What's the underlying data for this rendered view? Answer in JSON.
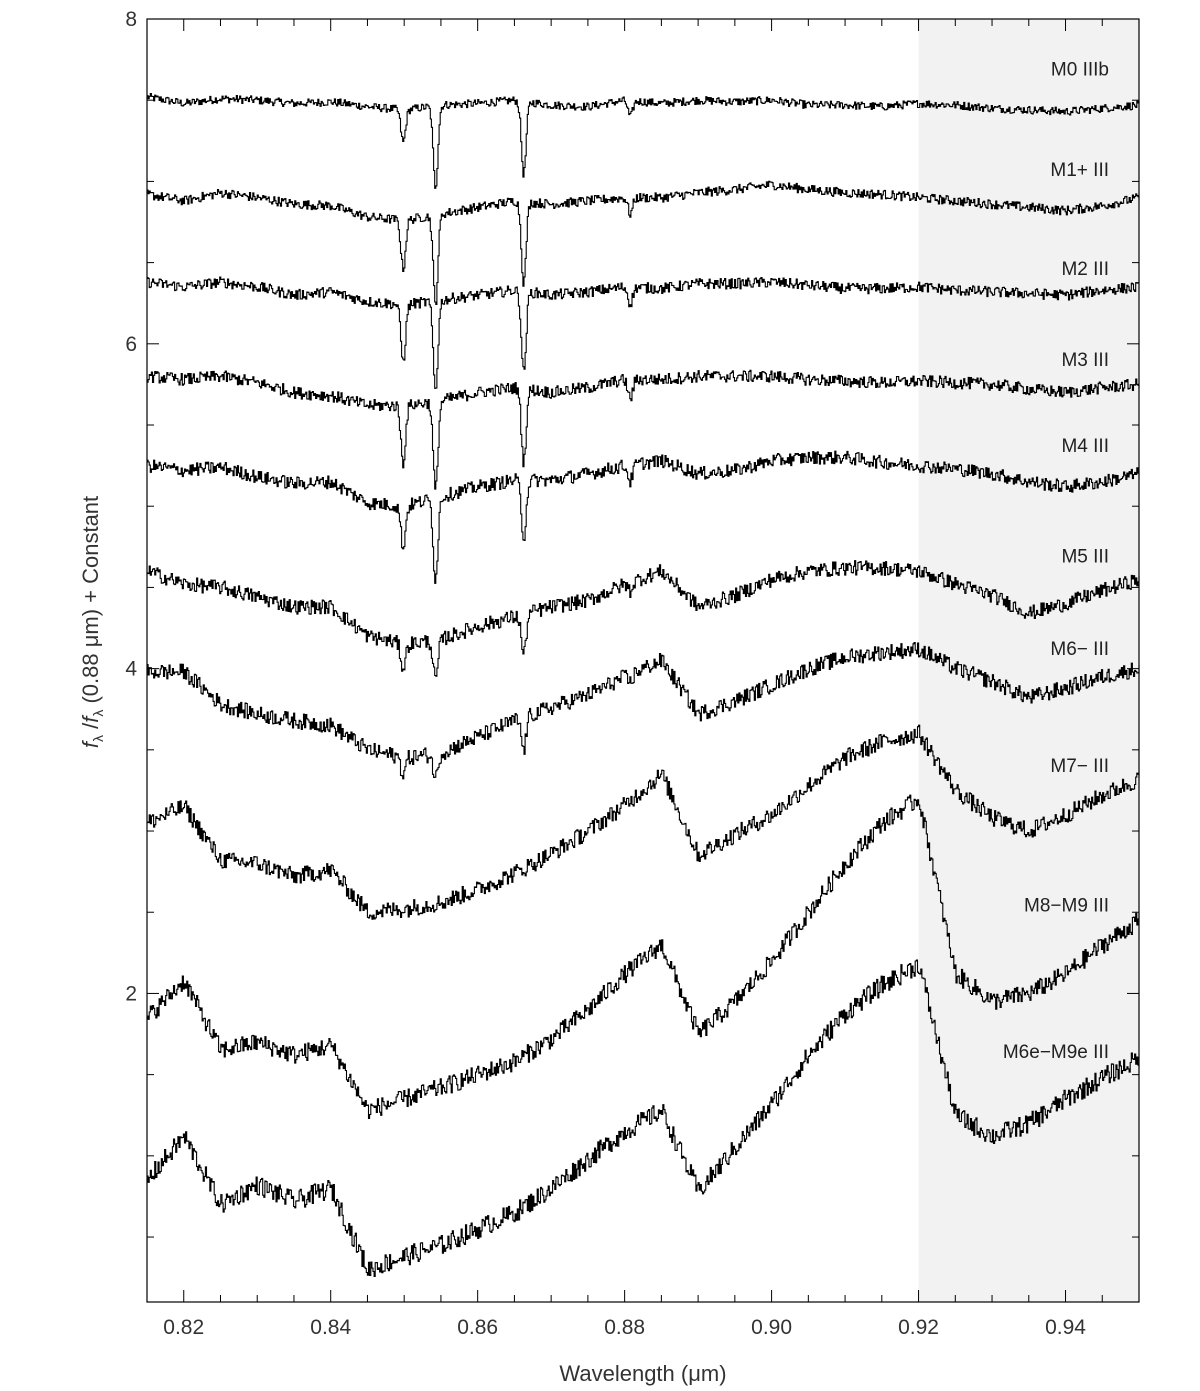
{
  "chart_data": {
    "type": "line",
    "title": "",
    "xlabel": "Wavelength (μm)",
    "ylabel": "fλ/fλ (0.88 μm) + Constant",
    "xlim": [
      0.815,
      0.95
    ],
    "ylim": [
      0.1,
      8.0
    ],
    "x_ticks": [
      "0.82",
      "0.84",
      "0.86",
      "0.88",
      "0.90",
      "0.92",
      "0.94"
    ],
    "y_ticks": [
      "2",
      "4",
      "6",
      "8"
    ],
    "shaded_region": [
      0.92,
      0.95
    ],
    "grid": false,
    "x": [
      0.815,
      0.82,
      0.825,
      0.83,
      0.835,
      0.84,
      0.845,
      0.85,
      0.855,
      0.86,
      0.865,
      0.87,
      0.875,
      0.88,
      0.885,
      0.89,
      0.895,
      0.9,
      0.905,
      0.91,
      0.915,
      0.92,
      0.925,
      0.93,
      0.935,
      0.94,
      0.945,
      0.95
    ],
    "absorption_lines": [
      0.8498,
      0.8542,
      0.8662,
      0.8807
    ],
    "series": [
      {
        "name": "M0 IIIb",
        "values": [
          7.52,
          7.48,
          7.51,
          7.5,
          7.48,
          7.49,
          7.46,
          7.44,
          7.47,
          7.48,
          7.5,
          7.47,
          7.46,
          7.5,
          7.48,
          7.5,
          7.49,
          7.5,
          7.47,
          7.47,
          7.46,
          7.48,
          7.47,
          7.45,
          7.44,
          7.43,
          7.45,
          7.47
        ],
        "line_depth": [
          0.2,
          0.5,
          0.45,
          0.1
        ]
      },
      {
        "name": "M1+ III",
        "values": [
          6.92,
          6.88,
          6.93,
          6.9,
          6.86,
          6.85,
          6.78,
          6.76,
          6.8,
          6.84,
          6.88,
          6.86,
          6.88,
          6.9,
          6.9,
          6.93,
          6.95,
          6.98,
          6.95,
          6.93,
          6.92,
          6.9,
          6.88,
          6.86,
          6.84,
          6.82,
          6.85,
          6.9
        ],
        "line_depth": [
          0.3,
          0.55,
          0.5,
          0.1
        ]
      },
      {
        "name": "M2 III",
        "values": [
          6.38,
          6.35,
          6.38,
          6.35,
          6.3,
          6.32,
          6.26,
          6.24,
          6.27,
          6.3,
          6.33,
          6.3,
          6.32,
          6.35,
          6.34,
          6.37,
          6.37,
          6.38,
          6.36,
          6.34,
          6.34,
          6.35,
          6.33,
          6.32,
          6.31,
          6.3,
          6.33,
          6.35
        ],
        "line_depth": [
          0.35,
          0.55,
          0.5,
          0.1
        ]
      },
      {
        "name": "M3 III",
        "values": [
          5.8,
          5.78,
          5.8,
          5.76,
          5.7,
          5.68,
          5.62,
          5.62,
          5.65,
          5.7,
          5.73,
          5.7,
          5.73,
          5.78,
          5.78,
          5.8,
          5.8,
          5.8,
          5.78,
          5.77,
          5.76,
          5.77,
          5.76,
          5.75,
          5.72,
          5.7,
          5.73,
          5.75
        ],
        "line_depth": [
          0.35,
          0.55,
          0.45,
          0.12
        ]
      },
      {
        "name": "M4 III",
        "values": [
          5.25,
          5.22,
          5.24,
          5.18,
          5.14,
          5.15,
          5.02,
          5.0,
          5.06,
          5.12,
          5.16,
          5.16,
          5.2,
          5.25,
          5.28,
          5.2,
          5.22,
          5.28,
          5.3,
          5.3,
          5.27,
          5.25,
          5.23,
          5.2,
          5.15,
          5.12,
          5.15,
          5.2
        ],
        "line_depth": [
          0.25,
          0.5,
          0.35,
          0.1
        ]
      },
      {
        "name": "M5 III",
        "values": [
          4.6,
          4.52,
          4.5,
          4.44,
          4.38,
          4.38,
          4.2,
          4.15,
          4.18,
          4.26,
          4.32,
          4.38,
          4.42,
          4.52,
          4.6,
          4.38,
          4.45,
          4.55,
          4.6,
          4.62,
          4.62,
          4.6,
          4.52,
          4.45,
          4.34,
          4.4,
          4.48,
          4.55
        ],
        "line_depth": [
          0.15,
          0.25,
          0.25,
          0.05
        ]
      },
      {
        "name": "M6− III",
        "values": [
          3.98,
          3.98,
          3.78,
          3.72,
          3.68,
          3.65,
          3.5,
          3.45,
          3.48,
          3.58,
          3.68,
          3.76,
          3.84,
          3.95,
          4.05,
          3.72,
          3.8,
          3.9,
          4.0,
          4.07,
          4.1,
          4.12,
          4.0,
          3.92,
          3.82,
          3.88,
          3.95,
          4.0
        ],
        "line_depth": [
          0.1,
          0.15,
          0.2,
          0.05
        ]
      },
      {
        "name": "M7− III",
        "values": [
          3.05,
          3.15,
          2.82,
          2.8,
          2.72,
          2.76,
          2.5,
          2.52,
          2.56,
          2.64,
          2.74,
          2.86,
          3.0,
          3.16,
          3.35,
          2.85,
          2.98,
          3.1,
          3.28,
          3.45,
          3.55,
          3.6,
          3.25,
          3.08,
          3.0,
          3.1,
          3.22,
          3.32
        ],
        "line_depth": [
          0.0,
          0.0,
          0.0,
          0.0
        ]
      },
      {
        "name": "M8−M9 III",
        "values": [
          1.85,
          2.08,
          1.65,
          1.7,
          1.62,
          1.68,
          1.28,
          1.35,
          1.42,
          1.5,
          1.58,
          1.72,
          1.9,
          2.12,
          2.3,
          1.75,
          1.95,
          2.2,
          2.5,
          2.8,
          3.05,
          3.2,
          2.12,
          1.95,
          2.0,
          2.12,
          2.3,
          2.45
        ],
        "line_depth": [
          0.0,
          0.0,
          0.0,
          0.0
        ]
      },
      {
        "name": "M6e−M9e III",
        "values": [
          0.85,
          1.12,
          0.7,
          0.82,
          0.72,
          0.8,
          0.3,
          0.38,
          0.45,
          0.55,
          0.65,
          0.8,
          0.98,
          1.15,
          1.28,
          0.78,
          1.05,
          1.32,
          1.62,
          1.88,
          2.05,
          2.18,
          1.25,
          1.12,
          1.2,
          1.35,
          1.48,
          1.6
        ],
        "line_depth": [
          0.0,
          0.0,
          0.0,
          0.0
        ]
      }
    ],
    "label_y": [
      7.69,
      7.07,
      6.46,
      5.9,
      5.37,
      4.69,
      4.12,
      3.4,
      2.54,
      1.64
    ]
  }
}
